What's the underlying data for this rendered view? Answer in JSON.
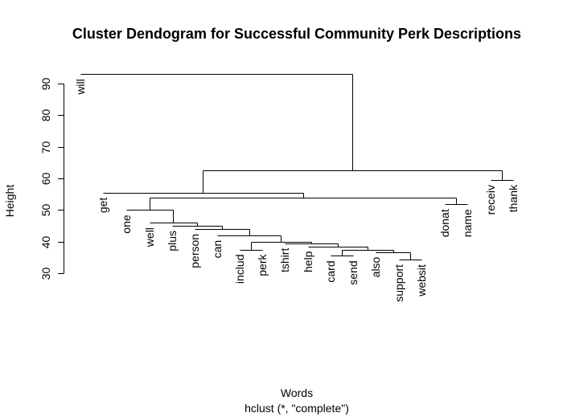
{
  "chart_data": {
    "type": "dendrogram",
    "title": "Cluster Dendogram for Successful Community Perk Descriptions",
    "xlabel": "Words",
    "sub": "hclust (*, \"complete\")",
    "ylabel": "Height",
    "yticks": [
      30,
      40,
      50,
      60,
      70,
      80,
      90
    ],
    "ylim": [
      30,
      96
    ],
    "leaves": [
      {
        "label": "will",
        "height": 93.0
      },
      {
        "label": "get",
        "height": 55.5
      },
      {
        "label": "one",
        "height": 50.0
      },
      {
        "label": "well",
        "height": 46.0
      },
      {
        "label": "plus",
        "height": 45.0
      },
      {
        "label": "person",
        "height": 44.0
      },
      {
        "label": "can",
        "height": 42.0
      },
      {
        "label": "includ",
        "height": 37.5
      },
      {
        "label": "perk",
        "height": 37.5
      },
      {
        "label": "tshirt",
        "height": 39.5
      },
      {
        "label": "help",
        "height": 38.5
      },
      {
        "label": "card",
        "height": 35.5
      },
      {
        "label": "send",
        "height": 35.5
      },
      {
        "label": "also",
        "height": 36.7
      },
      {
        "label": "support",
        "height": 34.3
      },
      {
        "label": "websit",
        "height": 34.3
      },
      {
        "label": "donat",
        "height": 51.8
      },
      {
        "label": "name",
        "height": 51.8
      },
      {
        "label": "receiv",
        "height": 59.5
      },
      {
        "label": "thank",
        "height": 59.5
      }
    ],
    "merges": [
      {
        "left": "support",
        "right": "websit",
        "height": 34.3
      },
      {
        "left": "card",
        "right": "send",
        "height": 35.5
      },
      {
        "left": "also",
        "right": "(support, websit)",
        "height": 36.7
      },
      {
        "left": "(card, send)",
        "right": "(also, support, websit)",
        "height": 37.5
      },
      {
        "left": "includ",
        "right": "perk",
        "height": 37.5
      },
      {
        "left": "help",
        "right": "(card, send, also, support, websit)",
        "height": 38.5
      },
      {
        "left": "tshirt",
        "right": "(help, ...)",
        "height": 39.5
      },
      {
        "left": "(includ, perk)",
        "right": "(tshirt, ...)",
        "height": 39.8
      },
      {
        "left": "can",
        "right": "(includ, ...)",
        "height": 42.0
      },
      {
        "left": "person",
        "right": "(can, ...)",
        "height": 44.0
      },
      {
        "left": "plus",
        "right": "(person, ...)",
        "height": 45.0
      },
      {
        "left": "well",
        "right": "(plus, ...)",
        "height": 46.0
      },
      {
        "left": "one",
        "right": "(well, ...)",
        "height": 50.0
      },
      {
        "left": "donat",
        "right": "name",
        "height": 51.8
      },
      {
        "left": "(one, ...)",
        "right": "(donat, name)",
        "height": 53.8
      },
      {
        "left": "get",
        "right": "(one, ..., donat, name)",
        "height": 55.5
      },
      {
        "left": "receiv",
        "right": "thank",
        "height": 59.5
      },
      {
        "left": "(get, ...)",
        "right": "(receiv, thank)",
        "height": 62.5
      },
      {
        "left": "will",
        "right": "(get, ..., thank)",
        "height": 93.0
      }
    ],
    "grid": false,
    "legend": "none"
  }
}
